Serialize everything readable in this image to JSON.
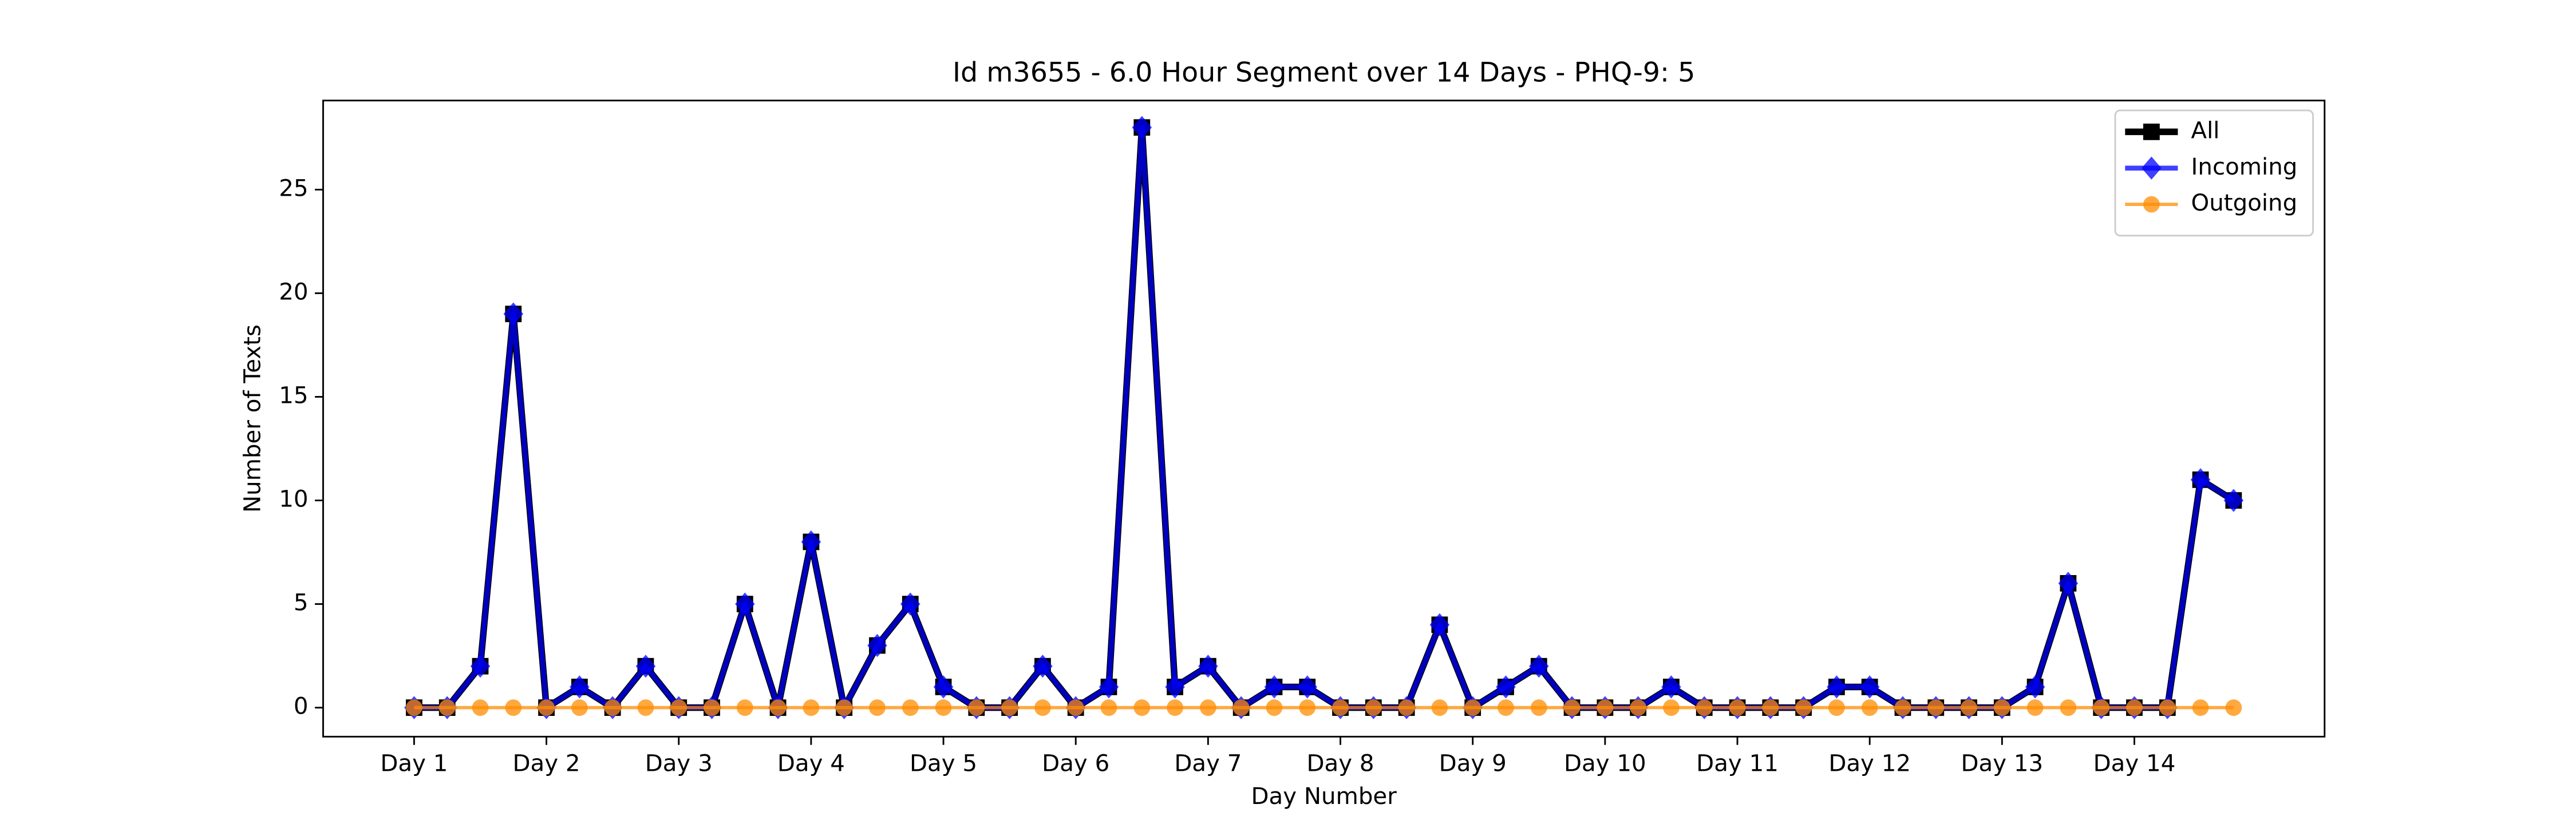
{
  "chart_data": {
    "type": "line",
    "title": "Id m3655 - 6.0 Hour Segment over 14 Days - PHQ-9: 5",
    "xlabel": "Day Number",
    "ylabel": "Number of Texts",
    "x": [
      0,
      1,
      2,
      3,
      4,
      5,
      6,
      7,
      8,
      9,
      10,
      11,
      12,
      13,
      14,
      15,
      16,
      17,
      18,
      19,
      20,
      21,
      22,
      23,
      24,
      25,
      26,
      27,
      28,
      29,
      30,
      31,
      32,
      33,
      34,
      35,
      36,
      37,
      38,
      39,
      40,
      41,
      42,
      43,
      44,
      45,
      46,
      47,
      48,
      49,
      50,
      51,
      52,
      53,
      54,
      55
    ],
    "series": [
      {
        "name": "All",
        "color": "#000000",
        "marker": "square",
        "values": [
          0,
          0,
          2,
          19,
          0,
          1,
          0,
          2,
          0,
          0,
          5,
          0,
          8,
          0,
          3,
          5,
          1,
          0,
          0,
          2,
          0,
          1,
          28,
          1,
          2,
          0,
          1,
          1,
          0,
          0,
          0,
          4,
          0,
          1,
          2,
          0,
          0,
          0,
          1,
          0,
          0,
          0,
          0,
          1,
          1,
          0,
          0,
          0,
          0,
          1,
          6,
          0,
          0,
          0,
          11,
          10
        ]
      },
      {
        "name": "Incoming",
        "color": "#0000ff",
        "marker": "diamond",
        "values": [
          0,
          0,
          2,
          19,
          0,
          1,
          0,
          2,
          0,
          0,
          5,
          0,
          8,
          0,
          3,
          5,
          1,
          0,
          0,
          2,
          0,
          1,
          28,
          1,
          2,
          0,
          1,
          1,
          0,
          0,
          0,
          4,
          0,
          1,
          2,
          0,
          0,
          0,
          1,
          0,
          0,
          0,
          0,
          1,
          1,
          0,
          0,
          0,
          0,
          1,
          6,
          0,
          0,
          0,
          11,
          10
        ]
      },
      {
        "name": "Outgoing",
        "color": "#ff8c00",
        "marker": "circle",
        "values": [
          0,
          0,
          0,
          0,
          0,
          0,
          0,
          0,
          0,
          0,
          0,
          0,
          0,
          0,
          0,
          0,
          0,
          0,
          0,
          0,
          0,
          0,
          0,
          0,
          0,
          0,
          0,
          0,
          0,
          0,
          0,
          0,
          0,
          0,
          0,
          0,
          0,
          0,
          0,
          0,
          0,
          0,
          0,
          0,
          0,
          0,
          0,
          0,
          0,
          0,
          0,
          0,
          0,
          0,
          0,
          0
        ]
      }
    ],
    "xlim": [
      -2.75,
      57.75
    ],
    "xticks": [
      {
        "value": 0,
        "label": "Day 1"
      },
      {
        "value": 4,
        "label": "Day 2"
      },
      {
        "value": 8,
        "label": "Day 3"
      },
      {
        "value": 12,
        "label": "Day 4"
      },
      {
        "value": 16,
        "label": "Day 5"
      },
      {
        "value": 20,
        "label": "Day 6"
      },
      {
        "value": 24,
        "label": "Day 7"
      },
      {
        "value": 28,
        "label": "Day 8"
      },
      {
        "value": 32,
        "label": "Day 9"
      },
      {
        "value": 36,
        "label": "Day 10"
      },
      {
        "value": 40,
        "label": "Day 11"
      },
      {
        "value": 44,
        "label": "Day 12"
      },
      {
        "value": 48,
        "label": "Day 13"
      },
      {
        "value": 52,
        "label": "Day 14"
      }
    ],
    "ylim": [
      -1.4,
      29.3
    ],
    "yticks": [
      0,
      5,
      10,
      15,
      20,
      25
    ],
    "grid": false,
    "legend": "upper right"
  }
}
